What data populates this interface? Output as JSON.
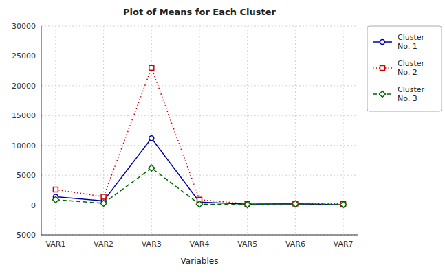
{
  "chart_data": {
    "type": "line",
    "title": "Plot of Means for Each Cluster",
    "x_label": "Variables",
    "categories": [
      "VAR1",
      "VAR2",
      "VAR3",
      "VAR4",
      "VAR5",
      "VAR6",
      "VAR7"
    ],
    "series": [
      {
        "name": "Cluster\nNo. 1",
        "color": "#0000aa",
        "marker": "circle",
        "line_style": "solid",
        "values": [
          1400,
          700,
          11200,
          500,
          150,
          200,
          50
        ]
      },
      {
        "name": "Cluster\nNo. 2",
        "color": "#cc0000",
        "marker": "square",
        "line_style": "dotted",
        "values": [
          2600,
          1400,
          23000,
          900,
          200,
          250,
          200
        ]
      },
      {
        "name": "Cluster\nNo. 3",
        "color": "#006600",
        "marker": "diamond",
        "line_style": "dashed",
        "values": [
          900,
          300,
          6200,
          150,
          80,
          200,
          100
        ]
      }
    ],
    "ylim": [
      -5000,
      30000
    ],
    "yticks": [
      -5000,
      0,
      5000,
      10000,
      15000,
      20000,
      25000,
      30000
    ],
    "grid": true,
    "legend": "right"
  }
}
